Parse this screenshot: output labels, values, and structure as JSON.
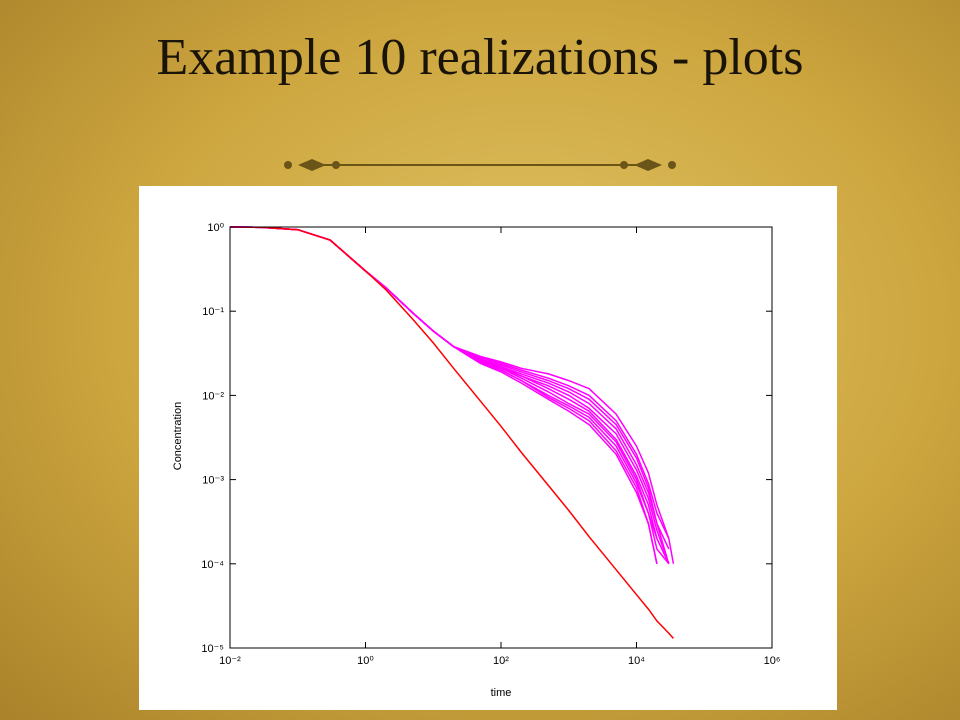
{
  "chart_data": {
    "type": "line",
    "title": "Example 10 realizations - plots",
    "x_label": "time",
    "y_label": "Concentration",
    "log_x": true,
    "log_y": true,
    "xlim": [
      0.01,
      1000000
    ],
    "ylim": [
      1e-05,
      1
    ],
    "xticks": [
      {
        "value": 0.01,
        "label": "10⁻²"
      },
      {
        "value": 1,
        "label": "10⁰"
      },
      {
        "value": 100,
        "label": "10²"
      },
      {
        "value": 10000,
        "label": "10⁴"
      },
      {
        "value": 1000000,
        "label": "10⁶"
      }
    ],
    "yticks": [
      {
        "value": 1,
        "label": "10⁰"
      },
      {
        "value": 0.1,
        "label": "10⁻¹"
      },
      {
        "value": 0.01,
        "label": "10⁻²"
      },
      {
        "value": 0.001,
        "label": "10⁻³"
      },
      {
        "value": 0.0001,
        "label": "10⁻⁴"
      },
      {
        "value": 1e-05,
        "label": "10⁻⁵"
      }
    ],
    "x": [
      0.01,
      0.03,
      0.1,
      0.3,
      1,
      2,
      5,
      10,
      20,
      50,
      100,
      200,
      500,
      1000,
      2000,
      5000,
      10000,
      15000,
      20000,
      30000,
      35000
    ],
    "series": [
      {
        "color": "#ff00ff",
        "values": [
          1,
          0.99,
          0.93,
          0.7,
          0.3,
          0.19,
          0.095,
          0.058,
          0.038,
          0.029,
          0.025,
          0.021,
          0.018,
          0.015,
          0.012,
          0.006,
          0.0025,
          0.0012,
          0.0005,
          0.0002,
          null
        ]
      },
      {
        "color": "#ff00ff",
        "values": [
          1,
          0.99,
          0.93,
          0.7,
          0.3,
          0.19,
          0.095,
          0.058,
          0.038,
          0.028,
          0.024,
          0.02,
          0.016,
          0.013,
          0.01,
          0.005,
          0.002,
          0.0009,
          0.0004,
          0.0002,
          0.0001
        ]
      },
      {
        "color": "#ff00ff",
        "values": [
          1,
          0.99,
          0.93,
          0.7,
          0.3,
          0.19,
          0.095,
          0.058,
          0.038,
          0.027,
          0.023,
          0.019,
          0.015,
          0.012,
          0.009,
          0.0045,
          0.0018,
          0.0008,
          0.0003,
          0.00015,
          null
        ]
      },
      {
        "color": "#ff00ff",
        "values": [
          1,
          0.99,
          0.93,
          0.7,
          0.3,
          0.19,
          0.095,
          0.058,
          0.038,
          0.027,
          0.022,
          0.018,
          0.014,
          0.011,
          0.008,
          0.004,
          0.0015,
          0.0007,
          0.0003,
          0.0001,
          null
        ]
      },
      {
        "color": "#ff00ff",
        "values": [
          1,
          0.99,
          0.93,
          0.7,
          0.3,
          0.19,
          0.095,
          0.058,
          0.038,
          0.026,
          0.022,
          0.017,
          0.013,
          0.01,
          0.007,
          0.0035,
          0.0013,
          0.0006,
          0.00025,
          0.0001,
          null
        ]
      },
      {
        "color": "#ff00ff",
        "values": [
          1,
          0.99,
          0.93,
          0.7,
          0.3,
          0.19,
          0.095,
          0.058,
          0.038,
          0.026,
          0.021,
          0.017,
          0.012,
          0.009,
          0.0065,
          0.003,
          0.0011,
          0.0005,
          0.0002,
          0.0001,
          null
        ]
      },
      {
        "color": "#ff00ff",
        "values": [
          1,
          0.99,
          0.93,
          0.7,
          0.3,
          0.19,
          0.095,
          0.058,
          0.038,
          0.025,
          0.021,
          0.016,
          0.011,
          0.008,
          0.006,
          0.0028,
          0.001,
          0.0004,
          0.0002,
          null,
          null
        ]
      },
      {
        "color": "#ff00ff",
        "values": [
          1,
          0.99,
          0.93,
          0.7,
          0.3,
          0.19,
          0.095,
          0.058,
          0.038,
          0.025,
          0.02,
          0.015,
          0.01,
          0.0075,
          0.0055,
          0.0025,
          0.0009,
          0.0004,
          0.00015,
          0.0001,
          null
        ]
      },
      {
        "color": "#ff00ff",
        "values": [
          1,
          0.99,
          0.93,
          0.7,
          0.3,
          0.19,
          0.095,
          0.058,
          0.038,
          0.024,
          0.02,
          0.015,
          0.0095,
          0.007,
          0.005,
          0.0022,
          0.0008,
          0.0003,
          0.0001,
          null,
          null
        ]
      },
      {
        "color": "#ff00ff",
        "values": [
          1,
          0.99,
          0.93,
          0.7,
          0.3,
          0.19,
          0.095,
          0.058,
          0.038,
          0.024,
          0.019,
          0.014,
          0.009,
          0.0065,
          0.0045,
          0.002,
          0.0007,
          0.0003,
          0.0001,
          null,
          null
        ]
      },
      {
        "color": "#ff0000",
        "values": [
          1,
          0.99,
          0.93,
          0.7,
          0.3,
          0.18,
          0.08,
          0.042,
          0.021,
          0.0085,
          0.0043,
          0.0021,
          0.00085,
          0.00043,
          0.00021,
          8.5e-05,
          4.3e-05,
          2.9e-05,
          2.1e-05,
          1.5e-05,
          1.3e-05
        ]
      }
    ]
  }
}
